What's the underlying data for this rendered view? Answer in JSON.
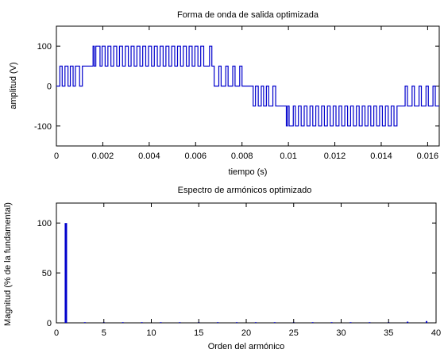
{
  "chart_data": [
    {
      "type": "line",
      "title": "Forma de onda de salida optimizada",
      "xlabel": "tiempo (s)",
      "ylabel": "amplitud (V)",
      "xlim": [
        0,
        0.0165
      ],
      "ylim": [
        -150,
        150
      ],
      "xticks": [
        0,
        0.002,
        0.004,
        0.006,
        0.008,
        0.01,
        0.012,
        0.014,
        0.016
      ],
      "xtick_labels": [
        "0",
        "0.002",
        "0.004",
        "0.006",
        "0.008",
        "0.01",
        "0.012",
        "0.014",
        "0.016"
      ],
      "yticks": [
        -100,
        0,
        100
      ],
      "ytick_labels": [
        "-100",
        "0",
        "100"
      ],
      "grid": false,
      "series": [
        {
          "color": "#0000cc",
          "description_points": "staircase PWM waveform: t in seconds, v in volts",
          "t": [
            0,
            0.00015,
            0.00015,
            0.00025,
            0.00025,
            0.00037,
            0.00037,
            0.0005,
            0.0005,
            0.0006,
            0.0006,
            0.00072,
            0.00072,
            0.00082,
            0.00082,
            0.001,
            0.001,
            0.00112,
            0.00112,
            0.0013,
            0.0013,
            0.00158,
            0.00158,
            0.00163,
            0.00163,
            0.0017,
            0.0017,
            0.00188,
            0.00188,
            0.00197,
            0.00197,
            0.0021,
            0.0021,
            0.00222,
            0.00222,
            0.00235,
            0.00235,
            0.00247,
            0.00247,
            0.0026,
            0.0026,
            0.00272,
            0.00272,
            0.00285,
            0.00285,
            0.00297,
            0.00297,
            0.0031,
            0.0031,
            0.00322,
            0.00322,
            0.00335,
            0.00335,
            0.00347,
            0.00347,
            0.0036,
            0.0036,
            0.00372,
            0.00372,
            0.00385,
            0.00385,
            0.00397,
            0.00397,
            0.0041,
            0.0041,
            0.00422,
            0.00422,
            0.00435,
            0.00435,
            0.00447,
            0.00447,
            0.0046,
            0.0046,
            0.00472,
            0.00472,
            0.00485,
            0.00485,
            0.00497,
            0.00497,
            0.0051,
            0.0051,
            0.00522,
            0.00522,
            0.00535,
            0.00535,
            0.00547,
            0.00547,
            0.0056,
            0.0056,
            0.00572,
            0.00572,
            0.00585,
            0.00585,
            0.00597,
            0.00597,
            0.0061,
            0.0061,
            0.00622,
            0.00622,
            0.00635,
            0.00635,
            0.0066,
            0.0066,
            0.0067,
            0.0067,
            0.0068,
            0.0068,
            0.007,
            0.007,
            0.0071,
            0.0071,
            0.0073,
            0.0073,
            0.0074,
            0.0074,
            0.0076,
            0.0076,
            0.0077,
            0.0077,
            0.0079,
            0.0079,
            0.008,
            0.008,
            0.00833,
            0.00833,
            0.00848,
            0.00848,
            0.00858,
            0.00858,
            0.0087,
            0.0087,
            0.00883,
            0.00883,
            0.00893,
            0.00893,
            0.00905,
            0.00905,
            0.00915,
            0.00915,
            0.00933,
            0.00933,
            0.00945,
            0.00945,
            0.00963,
            0.00963,
            0.00991,
            0.00991,
            0.00996,
            0.00996,
            0.01003,
            0.01003,
            0.01021,
            0.01021,
            0.0103,
            0.0103,
            0.01043,
            0.01043,
            0.01055,
            0.01055,
            0.01068,
            0.01068,
            0.0108,
            0.0108,
            0.01093,
            0.01093,
            0.01105,
            0.01105,
            0.01118,
            0.01118,
            0.0113,
            0.0113,
            0.01143,
            0.01143,
            0.01155,
            0.01155,
            0.01168,
            0.01168,
            0.0118,
            0.0118,
            0.01193,
            0.01193,
            0.01205,
            0.01205,
            0.01218,
            0.01218,
            0.0123,
            0.0123,
            0.01243,
            0.01243,
            0.01255,
            0.01255,
            0.01268,
            0.01268,
            0.0128,
            0.0128,
            0.01293,
            0.01293,
            0.01305,
            0.01305,
            0.01318,
            0.01318,
            0.0133,
            0.0133,
            0.01343,
            0.01343,
            0.01355,
            0.01355,
            0.01368,
            0.01368,
            0.0138,
            0.0138,
            0.01393,
            0.01393,
            0.01405,
            0.01405,
            0.01418,
            0.01418,
            0.0143,
            0.0143,
            0.01443,
            0.01443,
            0.01455,
            0.01455,
            0.01468,
            0.01468,
            0.01493,
            0.01493,
            0.01503,
            0.01503,
            0.01513,
            0.01513,
            0.01533,
            0.01533,
            0.01543,
            0.01543,
            0.01563,
            0.01563,
            0.01573,
            0.01573,
            0.01593,
            0.01593,
            0.01603,
            0.01603,
            0.01623,
            0.01623,
            0.01633,
            0.01633,
            0.0165
          ],
          "v": [
            0,
            0,
            50,
            50,
            0,
            0,
            50,
            50,
            0,
            0,
            50,
            50,
            0,
            0,
            50,
            50,
            0,
            0,
            50,
            50,
            50,
            50,
            100,
            100,
            50,
            50,
            100,
            100,
            50,
            50,
            100,
            100,
            50,
            50,
            100,
            100,
            50,
            50,
            100,
            100,
            50,
            50,
            100,
            100,
            50,
            50,
            100,
            100,
            50,
            50,
            100,
            100,
            50,
            50,
            100,
            100,
            50,
            50,
            100,
            100,
            50,
            50,
            100,
            100,
            50,
            50,
            100,
            100,
            50,
            50,
            100,
            100,
            50,
            50,
            100,
            100,
            50,
            50,
            100,
            100,
            50,
            50,
            100,
            100,
            50,
            50,
            100,
            100,
            50,
            50,
            100,
            100,
            50,
            50,
            100,
            100,
            50,
            50,
            100,
            100,
            50,
            50,
            100,
            100,
            50,
            50,
            0,
            0,
            50,
            50,
            0,
            0,
            50,
            50,
            0,
            0,
            50,
            50,
            0,
            0,
            50,
            50,
            0,
            0,
            0,
            0,
            -50,
            -50,
            0,
            0,
            -50,
            -50,
            0,
            0,
            -50,
            -50,
            0,
            0,
            -50,
            -50,
            0,
            0,
            -50,
            -50,
            -50,
            -50,
            -100,
            -100,
            -50,
            -50,
            -100,
            -100,
            -50,
            -50,
            -100,
            -100,
            -50,
            -50,
            -100,
            -100,
            -50,
            -50,
            -100,
            -100,
            -50,
            -50,
            -100,
            -100,
            -50,
            -50,
            -100,
            -100,
            -50,
            -50,
            -100,
            -100,
            -50,
            -50,
            -100,
            -100,
            -50,
            -50,
            -100,
            -100,
            -50,
            -50,
            -100,
            -100,
            -50,
            -50,
            -100,
            -100,
            -50,
            -50,
            -100,
            -100,
            -50,
            -50,
            -100,
            -100,
            -50,
            -50,
            -100,
            -100,
            -50,
            -50,
            -100,
            -100,
            -50,
            -50,
            -100,
            -100,
            -50,
            -50,
            -100,
            -100,
            -50,
            -50,
            -100,
            -100,
            -50,
            -50,
            -100,
            -100,
            -50,
            -50,
            -50,
            -50,
            0,
            0,
            -50,
            -50,
            0,
            0,
            -50,
            -50,
            0,
            0,
            -50,
            -50,
            0,
            0,
            -50,
            -50,
            0,
            0,
            -50,
            -50,
            0,
            0
          ]
        }
      ]
    },
    {
      "type": "bar",
      "title": "Espectro de armónicos optimizado",
      "xlabel": "Orden del armónico",
      "ylabel": "Magnitud (% de la fundamental)",
      "xlim": [
        0,
        40
      ],
      "ylim": [
        0,
        120
      ],
      "xticks": [
        0,
        5,
        10,
        15,
        20,
        25,
        30,
        35,
        40
      ],
      "xtick_labels": [
        "0",
        "5",
        "10",
        "15",
        "20",
        "25",
        "30",
        "35",
        "40"
      ],
      "yticks": [
        0,
        50,
        100
      ],
      "ytick_labels": [
        "0",
        "50",
        "100"
      ],
      "grid": false,
      "color": "#0000cc",
      "x": [
        1,
        3,
        5,
        7,
        9,
        11,
        13,
        15,
        17,
        19,
        21,
        23,
        25,
        27,
        29,
        31,
        33,
        35,
        37,
        39
      ],
      "values": [
        100,
        0.3,
        0.3,
        0.4,
        0.3,
        0.5,
        0.4,
        0.3,
        0.4,
        0.3,
        0.5,
        0.4,
        0.3,
        0.6,
        0.4,
        0.5,
        0.6,
        0.4,
        1.2,
        1.8
      ]
    }
  ]
}
